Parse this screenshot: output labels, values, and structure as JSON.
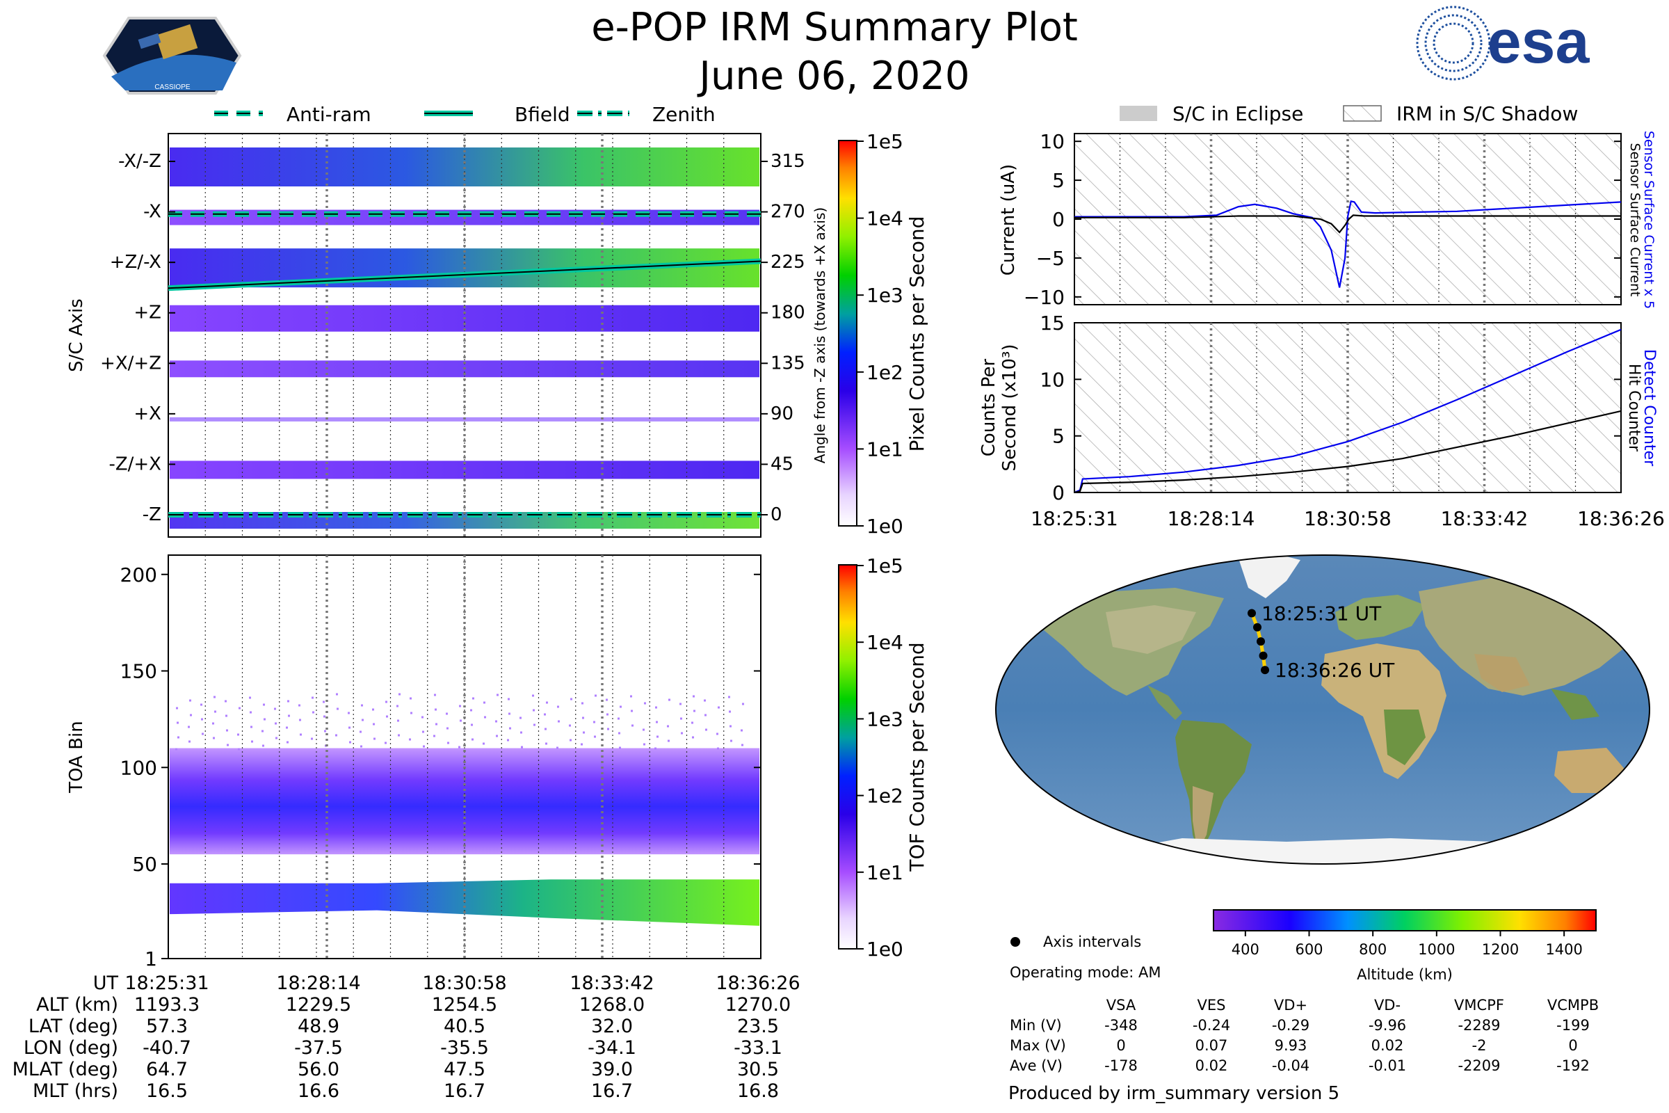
{
  "title": "e-POP IRM Summary Plot",
  "date": "June 06, 2020",
  "logo_left_text": "CASSIOPE",
  "logo_right_text": "esa",
  "colors": {
    "zenith_line": "#00c8a0",
    "bfield_line": "#000000",
    "current_x5": "#0000ee",
    "detect_counter": "#0000ee",
    "black": "#000000"
  },
  "top_legend": [
    "Anti-ram",
    "Bfield",
    "Zenith"
  ],
  "right_legend": [
    "S/C in Eclipse",
    "IRM in S/C Shadow"
  ],
  "time_ticks": [
    "18:25:31",
    "18:28:14",
    "18:30:58",
    "18:33:42",
    "18:36:26"
  ],
  "chart_data": [
    {
      "id": "sc-axis-spectrogram",
      "type": "heatmap",
      "ylabel": "S/C Axis",
      "ylabel_right": "Angle from -Z axis (towards +X axis)",
      "y_categories": [
        "-X/-Z",
        "-X",
        "+Z/-X",
        "+Z",
        "+X/+Z",
        "+X",
        "-Z/+X",
        "-Z"
      ],
      "y_angles": [
        "315",
        "270",
        "225",
        "180",
        "135",
        "90",
        "45",
        "0"
      ],
      "colorbar_label": "Pixel Counts per Second",
      "colorbar_ticks": [
        "1e5",
        "1e4",
        "1e3",
        "1e2",
        "1e1",
        "1e0"
      ],
      "series": [
        {
          "name": "Anti-ram",
          "style": "dashed",
          "angle_start": 268,
          "angle_end": 268
        },
        {
          "name": "Bfield",
          "style": "solid",
          "angle_start": 202,
          "angle_end": 226
        },
        {
          "name": "Zenith",
          "style": "dashdot",
          "angle_start": 0,
          "angle_end": 0
        }
      ]
    },
    {
      "id": "toa-spectrogram",
      "type": "heatmap",
      "ylabel": "TOA Bin",
      "yticks": [
        "200",
        "150",
        "100",
        "50",
        "1"
      ],
      "ylim": [
        1,
        210
      ],
      "colorbar_label": "TOF Counts per Second",
      "colorbar_ticks": [
        "1e5",
        "1e4",
        "1e3",
        "1e2",
        "1e1",
        "1e0"
      ]
    },
    {
      "id": "current-plot",
      "type": "line",
      "ylabel": "Current (uA)",
      "yticks": [
        "10",
        "5",
        "0",
        "−5",
        "−10"
      ],
      "ylim": [
        -11,
        11
      ],
      "right_label_blue": "Sensor Surface Current x 5",
      "right_label_black": "Sensor Surface Current",
      "series": [
        {
          "name": "Sensor Surface Current x 5",
          "color": "#0000ee",
          "x": [
            0,
            0.2,
            0.26,
            0.3,
            0.33,
            0.37,
            0.4,
            0.435,
            0.45,
            0.47,
            0.485,
            0.495,
            0.5,
            0.506,
            0.512,
            0.525,
            0.55,
            0.7,
            0.85,
            1.0
          ],
          "y": [
            0.3,
            0.3,
            0.5,
            1.6,
            1.9,
            1.4,
            0.7,
            0.2,
            -1.0,
            -4.0,
            -8.8,
            -5.0,
            0.3,
            2.3,
            2.2,
            0.9,
            0.8,
            1.0,
            1.6,
            2.2
          ]
        },
        {
          "name": "Sensor Surface Current",
          "color": "#000000",
          "x": [
            0,
            0.2,
            0.3,
            0.4,
            0.45,
            0.47,
            0.485,
            0.495,
            0.502,
            0.51,
            0.53,
            0.6,
            0.8,
            1.0
          ],
          "y": [
            0.2,
            0.2,
            0.4,
            0.4,
            0.0,
            -0.6,
            -1.7,
            -0.8,
            0.0,
            0.5,
            0.4,
            0.4,
            0.4,
            0.4
          ]
        }
      ]
    },
    {
      "id": "counts-plot",
      "type": "line",
      "ylabel": "Counts Per Second (x10³)",
      "yticks": [
        "15",
        "10",
        "5",
        "0"
      ],
      "ylim": [
        0,
        15
      ],
      "right_label_blue": "Detect Counter",
      "right_label_black": "Hit Counter",
      "series": [
        {
          "name": "Detect Counter",
          "color": "#0000ee",
          "x": [
            0,
            0.01,
            0.015,
            0.1,
            0.2,
            0.3,
            0.4,
            0.5,
            0.6,
            0.7,
            0.8,
            0.9,
            1.0
          ],
          "y": [
            0.0,
            0.2,
            1.2,
            1.4,
            1.8,
            2.4,
            3.2,
            4.5,
            6.2,
            8.2,
            10.3,
            12.4,
            14.4
          ]
        },
        {
          "name": "Hit Counter",
          "color": "#000000",
          "x": [
            0,
            0.01,
            0.015,
            0.1,
            0.2,
            0.3,
            0.4,
            0.5,
            0.6,
            0.7,
            0.8,
            0.9,
            1.0
          ],
          "y": [
            0.0,
            0.1,
            0.8,
            0.9,
            1.1,
            1.4,
            1.8,
            2.3,
            3.0,
            4.0,
            5.0,
            6.1,
            7.2
          ]
        }
      ]
    }
  ],
  "map": {
    "start_label": "18:25:31 UT",
    "end_label": "18:36:26 UT",
    "track_points": [
      [
        -40.7,
        57.3
      ],
      [
        -37.5,
        48.9
      ],
      [
        -35.5,
        40.5
      ],
      [
        -34.1,
        32.0
      ],
      [
        -33.1,
        23.5
      ]
    ],
    "altitude_label": "Altitude (km)",
    "altitude_ticks": [
      "400",
      "600",
      "800",
      "1000",
      "1200",
      "1400"
    ],
    "axis_intervals_label": "Axis intervals",
    "operating_mode": "Operating mode: AM"
  },
  "bottom_table": {
    "rows": [
      {
        "label": "UT",
        "values": [
          "18:25:31",
          "18:28:14",
          "18:30:58",
          "18:33:42",
          "18:36:26"
        ]
      },
      {
        "label": "ALT (km)",
        "values": [
          "1193.3",
          "1229.5",
          "1254.5",
          "1268.0",
          "1270.0"
        ]
      },
      {
        "label": "LAT (deg)",
        "values": [
          "57.3",
          "48.9",
          "40.5",
          "32.0",
          "23.5"
        ]
      },
      {
        "label": "LON (deg)",
        "values": [
          "-40.7",
          "-37.5",
          "-35.5",
          "-34.1",
          "-33.1"
        ]
      },
      {
        "label": "MLAT (deg)",
        "values": [
          "64.7",
          "56.0",
          "47.5",
          "39.0",
          "30.5"
        ]
      },
      {
        "label": "MLT (hrs)",
        "values": [
          "16.5",
          "16.6",
          "16.7",
          "16.7",
          "16.8"
        ]
      }
    ]
  },
  "voltage_table": {
    "headers": [
      "VSA",
      "VES",
      "VD+",
      "VD-",
      "VMCPF",
      "VCMPB"
    ],
    "rows": [
      {
        "label": "Min (V)",
        "values": [
          "-348",
          "-0.24",
          "-0.29",
          "-9.96",
          "-2289",
          "-199"
        ]
      },
      {
        "label": "Max (V)",
        "values": [
          "0",
          "0.07",
          "9.93",
          "0.02",
          "-2",
          "0"
        ]
      },
      {
        "label": "Ave (V)",
        "values": [
          "-178",
          "0.02",
          "-0.04",
          "-0.01",
          "-2209",
          "-192"
        ]
      }
    ]
  },
  "footer": "Produced by irm_summary version 5"
}
